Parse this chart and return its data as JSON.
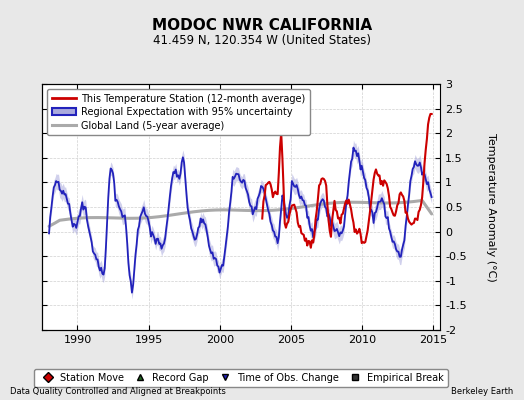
{
  "title": "MODOC NWR CALIFORNIA",
  "subtitle": "41.459 N, 120.354 W (United States)",
  "ylabel": "Temperature Anomaly (°C)",
  "xlabel_left": "Data Quality Controlled and Aligned at Breakpoints",
  "xlabel_right": "Berkeley Earth",
  "xlim": [
    1987.5,
    2015.5
  ],
  "ylim": [
    -2.0,
    3.0
  ],
  "yticks": [
    -2,
    -1.5,
    -1,
    -0.5,
    0,
    0.5,
    1,
    1.5,
    2,
    2.5,
    3
  ],
  "xticks": [
    1990,
    1995,
    2000,
    2005,
    2010,
    2015
  ],
  "bg_color": "#e8e8e8",
  "plot_bg_color": "#ffffff",
  "grid_color": "#d0d0d0",
  "red_color": "#cc0000",
  "blue_color": "#2222bb",
  "blue_fill_color": "#aaaadd",
  "gray_color": "#aaaaaa",
  "legend_items": [
    {
      "label": "This Temperature Station (12-month average)"
    },
    {
      "label": "Regional Expectation with 95% uncertainty"
    },
    {
      "label": "Global Land (5-year average)"
    }
  ],
  "bottom_legend": [
    {
      "label": "Station Move",
      "marker": "D",
      "color": "#cc0000"
    },
    {
      "label": "Record Gap",
      "marker": "^",
      "color": "#226622"
    },
    {
      "label": "Time of Obs. Change",
      "marker": "v",
      "color": "#2222bb"
    },
    {
      "label": "Empirical Break",
      "marker": "s",
      "color": "#333333"
    }
  ]
}
